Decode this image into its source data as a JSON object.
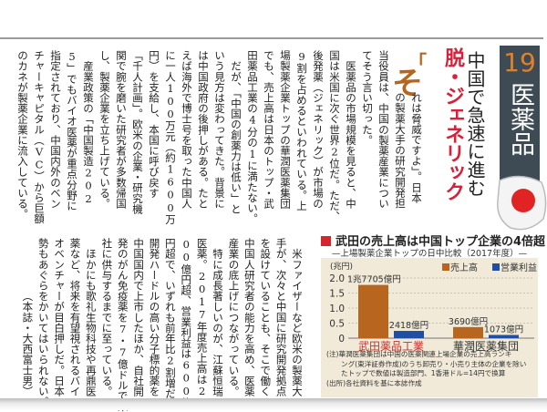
{
  "section": {
    "number": "19",
    "category": "医薬品"
  },
  "headline": {
    "line1": "中国で急速に進む",
    "line2": "脱・ジェネリック"
  },
  "dropcap": {
    "quote": "「",
    "char": "そ"
  },
  "article": {
    "upper_columns": [
      "れは脅威ですよ」。日本",
      "の製薬大手の研究開発担",
      "当役員は、中国の製薬産業につい",
      "てそう言い切った。",
      "　医薬品の市場規模を見ると、中",
      "国は米国に次ぐ世界2位だ。ただ、",
      "後発薬（ジェネリック）が市場の",
      "9割を占めるといわれている。上",
      "場製薬企業トップの華潤医薬集団",
      "でも、売上高は日本のトップ・武",
      "田薬品工業の4分の1に満たない。",
      "　だが、「中国の創薬力は低い」と",
      "いう見方は変わってきた。背景に",
      "は中国政府の後押しがある。たと",
      "えば海外で博士号を取った中国人",
      "に一人100万元（約1600万",
      "円）を支給し、本国に呼び戻す",
      "「千人計画」。欧米の企業・研究機",
      "関で腕を磨いた研究者が多数帰国",
      "し、製薬企業を立ち上げている。",
      "　産業政策の「中国製造202",
      "5」でもバイオ医薬が重点分野に",
      "指定されており、中国内外のベン",
      "チャーキャピタル（VC）から巨額",
      "のカネが製薬企業に流入している。"
    ],
    "lower_columns": [
      "　米ファイザーなど欧米の製薬大",
      "手が、次々と中国に研究開発拠点",
      "を設けていることも、そこで働く",
      "中国人研究者の能力を高め、医薬",
      "産業の底上げにつながっている。",
      "　特に成長著しいのが、江蘇恒瑞",
      "医薬。2017年度売上高は22",
      "00億円超、営業利益は600億",
      "円超で、いずれも前年比2割増だ。",
      "開発ハードルの高い分子標的薬を",
      "中国国内で上市したほか、自社開",
      "発のがん免疫薬を7・7億ドルで米",
      "社に供与するまでに至っている。",
      "　ほかにも歌礼生物科技や再鼎医",
      "薬など、将来を有望視されるバイ",
      "オベンチャーが目白押しだ。日本",
      "勢もあぐらをかいてはいられない。"
    ],
    "byline": "（本誌・大西富士男）"
  },
  "chart_data": {
    "type": "bar",
    "title": "武田の売上高は中国トップ企業の4倍超",
    "subtitle": "—上場製薬企業トップの日中比較（2017年度）—",
    "ylabel": "(兆円)",
    "ylim": [
      0,
      2.0
    ],
    "yticks": [
      "0",
      "0.5",
      "1.0",
      "1.5",
      "2.0"
    ],
    "grid": true,
    "legend_position": "top-right",
    "categories": [
      "武田薬品工業",
      "華潤医薬集団"
    ],
    "category_colors": [
      "#c8302c",
      "#333333"
    ],
    "series": [
      {
        "name": "売上高",
        "color": "#b8661f",
        "values": [
          1.7705,
          0.369
        ],
        "labels": [
          "1兆7705億円",
          "3690億円"
        ]
      },
      {
        "name": "営業利益",
        "color": "#1f4ea3",
        "values": [
          0.2418,
          0.1073
        ],
        "labels": [
          "2418億円",
          "1073億円"
        ]
      }
    ],
    "notes": [
      "(注)華潤医薬集団は中国の医薬関連上場企業の売上高ランキ",
      "ング(東洋証券作成)のうち卸売り・小売り主体の企業を除い",
      "たトップで数値は製造部門、1香港ドル=14円で換算",
      "(出所)各社資料を基に本誌作成"
    ]
  }
}
